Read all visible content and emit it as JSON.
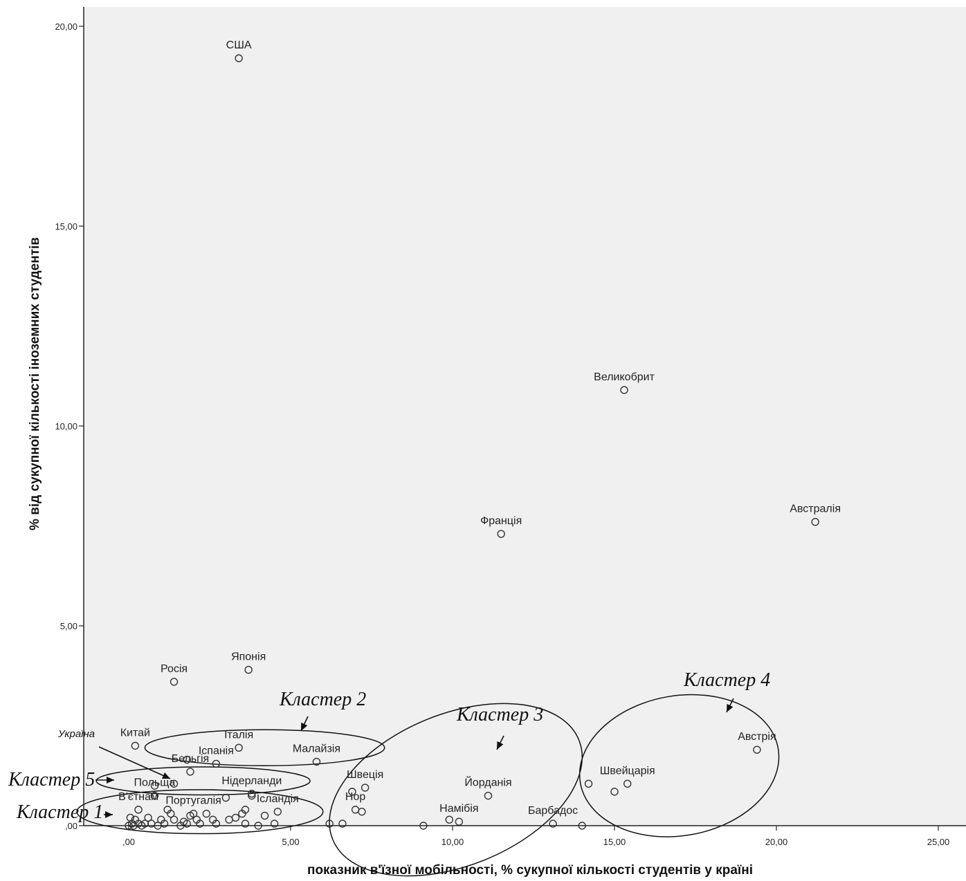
{
  "chart_data": {
    "type": "scatter",
    "xlabel": "показник в'їзної мобільності, % сукупної кількості студентів у країні",
    "ylabel": "% від сукупної кількості іноземних студентів",
    "xlim": [
      -1.4,
      25.0
    ],
    "ylim": [
      0.0,
      20.5
    ],
    "xticks": [
      0,
      5,
      10,
      15,
      20,
      25
    ],
    "xtick_labels": [
      ",00",
      "5,00",
      "10,00",
      "15,00",
      "20,00",
      "25,00"
    ],
    "yticks": [
      0,
      5,
      10,
      15,
      20
    ],
    "ytick_labels": [
      ",00",
      "5,00",
      "10,00",
      "15,00",
      "20,00"
    ],
    "grid": false,
    "plot_background": "#f0f0f0",
    "point_color": "#333333",
    "points": [
      {
        "label": "США",
        "x": 3.4,
        "y": 19.2
      },
      {
        "label": "Великобрит",
        "x": 15.3,
        "y": 10.9
      },
      {
        "label": "Австралія",
        "x": 21.2,
        "y": 7.6
      },
      {
        "label": "Франція",
        "x": 11.5,
        "y": 7.3
      },
      {
        "label": "Японія",
        "x": 3.7,
        "y": 3.9
      },
      {
        "label": "Росія",
        "x": 1.4,
        "y": 3.6
      },
      {
        "label": "Китай",
        "x": 0.2,
        "y": 2.0
      },
      {
        "label": "Італія",
        "x": 3.4,
        "y": 1.95
      },
      {
        "label": "Іспанія",
        "x": 2.7,
        "y": 1.55
      },
      {
        "label": "Малайзія",
        "x": 5.8,
        "y": 1.6
      },
      {
        "label": "Бельгія",
        "x": 1.9,
        "y": 1.35
      },
      {
        "label": "Нідерланди",
        "x": 3.8,
        "y": 0.8
      },
      {
        "label": "Польща",
        "x": 0.8,
        "y": 0.75
      },
      {
        "label": "Португалія",
        "x": 2.0,
        "y": 0.3
      },
      {
        "label": "В'єтнам",
        "x": 0.3,
        "y": 0.4
      },
      {
        "label": "Ісландія",
        "x": 4.6,
        "y": 0.35
      },
      {
        "label": "Швеція",
        "x": 7.3,
        "y": 0.95
      },
      {
        "label": "Йорданія",
        "x": 11.1,
        "y": 0.75
      },
      {
        "label": "Намібія",
        "x": 10.2,
        "y": 0.1
      },
      {
        "label": "Барбадос",
        "x": 13.1,
        "y": 0.05
      },
      {
        "label": "Нор",
        "x": 7.0,
        "y": 0.4
      },
      {
        "label": "Австрія",
        "x": 19.4,
        "y": 1.9
      },
      {
        "label": "Швейцарія",
        "x": 15.4,
        "y": 1.05
      },
      {
        "label": "",
        "x": 1.8,
        "y": 1.65
      },
      {
        "label": "",
        "x": 1.4,
        "y": 1.05
      },
      {
        "label": "",
        "x": 0.8,
        "y": 1.0
      },
      {
        "label": "",
        "x": 3.8,
        "y": 0.75
      },
      {
        "label": "",
        "x": 6.9,
        "y": 0.85
      },
      {
        "label": "",
        "x": 14.2,
        "y": 1.05
      },
      {
        "label": "",
        "x": 15.0,
        "y": 0.85
      },
      {
        "label": "",
        "x": 9.9,
        "y": 0.15
      },
      {
        "label": "",
        "x": 14.0,
        "y": 0.0
      },
      {
        "label": "",
        "x": 9.1,
        "y": 0.0
      },
      {
        "label": "",
        "x": 6.2,
        "y": 0.05
      },
      {
        "label": "",
        "x": 6.6,
        "y": 0.05
      },
      {
        "label": "",
        "x": 7.2,
        "y": 0.35
      },
      {
        "label": "",
        "x": 4.2,
        "y": 0.25
      },
      {
        "label": "",
        "x": 4.5,
        "y": 0.05
      },
      {
        "label": "",
        "x": 4.0,
        "y": 0.0
      },
      {
        "label": "",
        "x": 3.6,
        "y": 0.4
      },
      {
        "label": "",
        "x": 3.5,
        "y": 0.3
      },
      {
        "label": "",
        "x": 3.3,
        "y": 0.2
      },
      {
        "label": "",
        "x": 3.1,
        "y": 0.15
      },
      {
        "label": "",
        "x": 3.0,
        "y": 0.7
      },
      {
        "label": "",
        "x": 3.6,
        "y": 0.05
      },
      {
        "label": "",
        "x": 2.7,
        "y": 0.05
      },
      {
        "label": "",
        "x": 2.6,
        "y": 0.15
      },
      {
        "label": "",
        "x": 2.4,
        "y": 0.3
      },
      {
        "label": "",
        "x": 2.2,
        "y": 0.05
      },
      {
        "label": "",
        "x": 2.1,
        "y": 0.15
      },
      {
        "label": "",
        "x": 1.9,
        "y": 0.25
      },
      {
        "label": "",
        "x": 1.7,
        "y": 0.1
      },
      {
        "label": "",
        "x": 1.6,
        "y": 0.0
      },
      {
        "label": "",
        "x": 1.4,
        "y": 0.15
      },
      {
        "label": "",
        "x": 1.3,
        "y": 0.3
      },
      {
        "label": "",
        "x": 1.2,
        "y": 0.4
      },
      {
        "label": "",
        "x": 1.1,
        "y": 0.05
      },
      {
        "label": "",
        "x": 0.9,
        "y": 0.0
      },
      {
        "label": "",
        "x": 0.7,
        "y": 0.05
      },
      {
        "label": "",
        "x": 0.6,
        "y": 0.2
      },
      {
        "label": "",
        "x": 0.5,
        "y": 0.05
      },
      {
        "label": "",
        "x": 0.4,
        "y": 0.0
      },
      {
        "label": "",
        "x": 0.3,
        "y": 0.05
      },
      {
        "label": "",
        "x": 0.2,
        "y": 0.15
      },
      {
        "label": "",
        "x": 0.1,
        "y": 0.05
      },
      {
        "label": "",
        "x": 0.05,
        "y": 0.2
      },
      {
        "label": "",
        "x": 0.0,
        "y": 0.0
      },
      {
        "label": "",
        "x": 0.15,
        "y": 0.0
      },
      {
        "label": "",
        "x": 1.0,
        "y": 0.15
      },
      {
        "label": "",
        "x": 1.8,
        "y": 0.05
      }
    ],
    "annotations": [
      {
        "text": "Кластер 1",
        "ellipse": {
          "cx": 2.2,
          "cy": 0.35,
          "rx": 3.8,
          "ry": 0.55
        },
        "arrow_to": "ellipse-left"
      },
      {
        "text": "Кластер 2",
        "ellipse": {
          "cx": 4.2,
          "cy": 1.95,
          "rx": 3.7,
          "ry": 0.45
        },
        "arrow_to": "ellipse-top"
      },
      {
        "text": "Кластер 3",
        "ellipse": {
          "cx": 10.1,
          "cy": 0.9,
          "rx": 4.1,
          "ry": 1.9,
          "angle": -22
        },
        "arrow_to": "ellipse-top"
      },
      {
        "text": "Кластер 4",
        "ellipse": {
          "cx": 17.0,
          "cy": 1.5,
          "rx": 3.1,
          "ry": 1.75,
          "angle": -10
        },
        "arrow_to": "ellipse-top"
      },
      {
        "text": "Кластер 5",
        "ellipse": {
          "cx": 2.3,
          "cy": 1.12,
          "rx": 3.3,
          "ry": 0.35
        },
        "arrow_to": "ellipse-left"
      },
      {
        "text": "Україна",
        "arrow_to": "point-ua"
      }
    ]
  }
}
